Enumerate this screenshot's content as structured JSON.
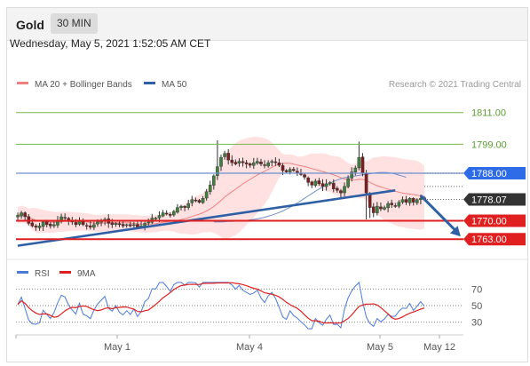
{
  "header": {
    "instrument": "Gold",
    "timeframe": "30 MIN"
  },
  "datetime": "Wednesday, May 5, 2021 1:52:05 AM CET",
  "legend": [
    {
      "label": "MA 20 + Bollinger Bands",
      "color": "#f08080"
    },
    {
      "label": "MA 50",
      "color": "#2f5fa5"
    }
  ],
  "credit": "Research © 2021 Trading Central",
  "rsi_legend": [
    {
      "label": "RSI",
      "color": "#4a7ad8"
    },
    {
      "label": "9MA",
      "color": "#e02020"
    }
  ],
  "chart_data": {
    "type": "candlestick",
    "price_axis": {
      "ylim": [
        1756,
        1820
      ]
    },
    "levels": [
      {
        "label": "1811.00",
        "value": 1811.0,
        "color": "#79b84a",
        "style": "resistance"
      },
      {
        "label": "1799.00",
        "value": 1799.0,
        "color": "#79b84a",
        "style": "resistance"
      },
      {
        "label": "1788.00",
        "value": 1788.0,
        "color": "#2e6be6",
        "style": "pivot"
      },
      {
        "label": "1778.07",
        "value": 1778.07,
        "color": "#333333",
        "style": "last-price"
      },
      {
        "label": "1770.00",
        "value": 1770.0,
        "color": "#e02020",
        "style": "support"
      },
      {
        "label": "1763.00",
        "value": 1763.0,
        "color": "#e02020",
        "style": "support"
      }
    ],
    "x_ticks": [
      "May 1",
      "May 4",
      "May 5",
      "May 12"
    ],
    "close": [
      1772.0,
      1773.0,
      1771.5,
      1769.0,
      1768.0,
      1767.5,
      1768.0,
      1769.5,
      1768.5,
      1768.0,
      1768.5,
      1770.0,
      1771.5,
      1771.0,
      1770.0,
      1769.5,
      1768.5,
      1770.0,
      1768.5,
      1768.0,
      1767.5,
      1768.5,
      1769.5,
      1770.0,
      1770.5,
      1769.0,
      1768.5,
      1769.0,
      1768.5,
      1768.0,
      1768.5,
      1768.0,
      1768.5,
      1767.5,
      1768.0,
      1769.0,
      1769.5,
      1771.0,
      1771.0,
      1772.0,
      1773.0,
      1772.5,
      1772.0,
      1773.5,
      1775.0,
      1775.5,
      1775.0,
      1776.5,
      1778.0,
      1777.5,
      1777.0,
      1778.5,
      1781.0,
      1783.5,
      1787.0,
      1790.5,
      1794.0,
      1795.5,
      1793.0,
      1792.0,
      1791.5,
      1792.5,
      1792.0,
      1791.5,
      1791.0,
      1792.0,
      1792.5,
      1791.5,
      1791.0,
      1792.0,
      1792.5,
      1792.0,
      1791.0,
      1789.0,
      1788.5,
      1789.5,
      1789.0,
      1788.0,
      1787.5,
      1786.5,
      1784.5,
      1783.5,
      1785.0,
      1784.0,
      1783.0,
      1784.0,
      1784.5,
      1782.0,
      1781.5,
      1780.5,
      1783.0,
      1786.0,
      1788.5,
      1790.0,
      1794.0,
      1788.0,
      1780.5,
      1775.0,
      1773.0,
      1775.5,
      1774.5,
      1775.0,
      1776.5,
      1776.0,
      1775.5,
      1777.0,
      1778.0,
      1777.0,
      1778.5,
      1777.0,
      1778.0,
      1778.5,
      1778.07
    ],
    "ma50": [
      1769.5,
      1769.5,
      1769.5,
      1769.6,
      1769.7,
      1769.7,
      1769.8,
      1769.9,
      1770.0,
      1770.1,
      1770.3,
      1770.5,
      1770.7,
      1771.0,
      1771.3,
      1771.7,
      1772.1,
      1772.6,
      1773.1,
      1773.7,
      1774.4,
      1775.1,
      1775.9,
      1776.7,
      1777.6,
      1778.5,
      1779.4,
      1780.3,
      1781.2,
      1782.0,
      1782.8,
      1783.5,
      1784.2,
      1784.9,
      1785.4,
      1785.9,
      1786.3,
      1786.6,
      1786.8,
      1787.0,
      1787.2,
      1787.4,
      1787.6,
      1787.8,
      1788.0,
      1788.2,
      1788.3,
      1788.3,
      1788.2,
      1788.0,
      1787.7,
      1787.3,
      1786.9,
      1786.5
    ],
    "ma50_start_index": 54,
    "trendline": {
      "from": {
        "index": 0,
        "value": 1760.5
      },
      "to": {
        "index": 104,
        "value": 1781.5
      }
    },
    "forecast_arrow": {
      "from": {
        "index": 111,
        "value": 1779.5
      },
      "to": {
        "index": 122,
        "value": 1764.0
      }
    },
    "rsi": {
      "ylim": [
        20,
        80
      ],
      "levels": [
        70,
        50,
        30
      ],
      "x_index_start": 0
    }
  }
}
